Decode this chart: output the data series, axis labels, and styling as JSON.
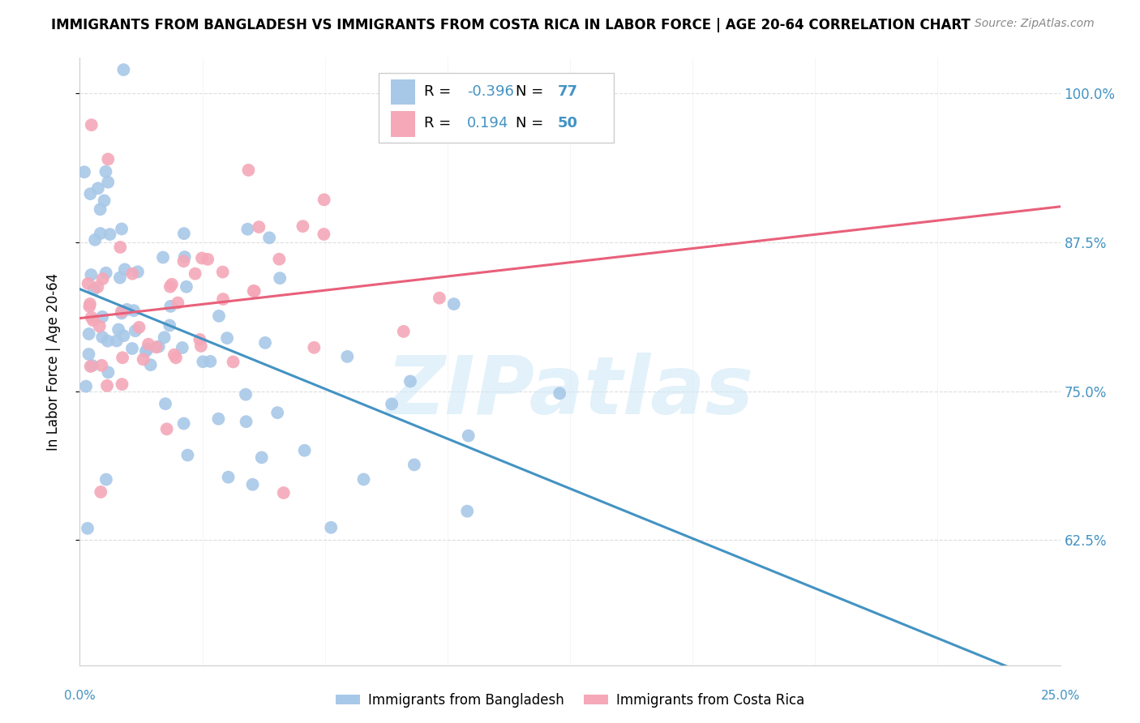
{
  "title": "IMMIGRANTS FROM BANGLADESH VS IMMIGRANTS FROM COSTA RICA IN LABOR FORCE | AGE 20-64 CORRELATION CHART",
  "source": "Source: ZipAtlas.com",
  "ylabel": "In Labor Force | Age 20-64",
  "xlim": [
    0.0,
    25.0
  ],
  "ylim": [
    52.0,
    103.0
  ],
  "yticks": [
    62.5,
    75.0,
    87.5,
    100.0
  ],
  "ytick_labels": [
    "62.5%",
    "75.0%",
    "87.5%",
    "100.0%"
  ],
  "legend_bangladesh": "Immigrants from Bangladesh",
  "legend_costarica": "Immigrants from Costa Rica",
  "R_bangladesh": -0.396,
  "N_bangladesh": 77,
  "R_costarica": 0.194,
  "N_costarica": 50,
  "color_bangladesh": "#a8c8e8",
  "color_costarica": "#f4a8b8",
  "color_bangladesh_line": "#4393c3",
  "color_costarica_line": "#e8607a",
  "color_axis_labels": "#4393c3",
  "watermark_text": "ZIPatlas",
  "watermark_color": "#d0e8f8",
  "background_color": "#ffffff",
  "grid_color": "#dddddd",
  "title_fontsize": 12,
  "source_fontsize": 10,
  "ytick_fontsize": 12,
  "ylabel_fontsize": 12
}
